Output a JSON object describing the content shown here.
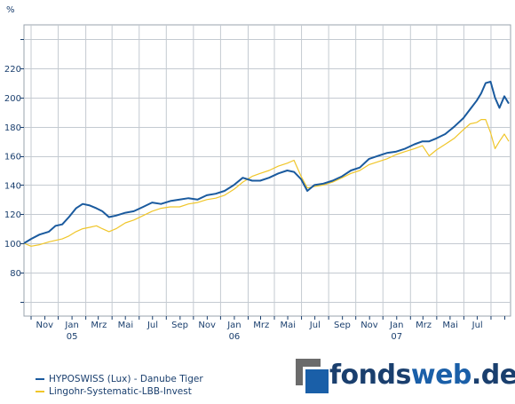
{
  "chart_data": {
    "type": "line",
    "y_unit": "%",
    "ylim": [
      50,
      250
    ],
    "y_ticks": [
      80,
      100,
      120,
      140,
      160,
      180,
      200,
      220
    ],
    "x_ticks": [
      {
        "label": "Nov",
        "year": ""
      },
      {
        "label": "Jan",
        "year": "05"
      },
      {
        "label": "Mrz",
        "year": ""
      },
      {
        "label": "Mai",
        "year": ""
      },
      {
        "label": "Jul",
        "year": ""
      },
      {
        "label": "Sep",
        "year": ""
      },
      {
        "label": "Nov",
        "year": ""
      },
      {
        "label": "Jan",
        "year": "06"
      },
      {
        "label": "Mrz",
        "year": ""
      },
      {
        "label": "Mai",
        "year": ""
      },
      {
        "label": "Jul",
        "year": ""
      },
      {
        "label": "Sep",
        "year": ""
      },
      {
        "label": "Nov",
        "year": ""
      },
      {
        "label": "Jan",
        "year": "07"
      },
      {
        "label": "Mrz",
        "year": ""
      },
      {
        "label": "Mai",
        "year": ""
      },
      {
        "label": "Jul",
        "year": ""
      }
    ],
    "grid": true,
    "legend_position": "bottom-left",
    "series": [
      {
        "name": "HYPOSWISS (Lux) - Danube Tiger",
        "color": "#1a5a9e",
        "x": [
          "2004-09-15",
          "2004-10-01",
          "2004-10-20",
          "2004-11-10",
          "2004-11-25",
          "2004-12-10",
          "2004-12-25",
          "2005-01-10",
          "2005-01-25",
          "2005-02-10",
          "2005-02-25",
          "2005-03-10",
          "2005-03-25",
          "2005-04-10",
          "2005-05-01",
          "2005-05-20",
          "2005-06-10",
          "2005-06-30",
          "2005-07-20",
          "2005-08-10",
          "2005-08-31",
          "2005-09-20",
          "2005-10-10",
          "2005-10-31",
          "2005-11-20",
          "2005-12-10",
          "2005-12-31",
          "2006-01-20",
          "2006-02-10",
          "2006-02-28",
          "2006-03-20",
          "2006-04-10",
          "2006-04-30",
          "2006-05-15",
          "2006-05-31",
          "2006-06-14",
          "2006-06-30",
          "2006-07-20",
          "2006-08-10",
          "2006-08-31",
          "2006-09-20",
          "2006-10-10",
          "2006-10-31",
          "2006-11-20",
          "2006-12-10",
          "2006-12-31",
          "2007-01-20",
          "2007-02-10",
          "2007-02-28",
          "2007-03-15",
          "2007-03-31",
          "2007-04-20",
          "2007-05-10",
          "2007-05-31",
          "2007-06-15",
          "2007-06-30",
          "2007-07-10",
          "2007-07-20",
          "2007-07-31",
          "2007-08-10",
          "2007-08-20",
          "2007-08-31",
          "2007-09-10"
        ],
        "values": [
          100,
          103,
          106,
          108,
          112,
          113,
          118,
          124,
          127,
          126,
          124,
          122,
          118,
          119,
          121,
          122,
          125,
          128,
          127,
          129,
          130,
          131,
          130,
          133,
          134,
          136,
          140,
          145,
          143,
          143,
          145,
          148,
          150,
          149,
          144,
          136,
          140,
          141,
          143,
          146,
          150,
          152,
          158,
          160,
          162,
          163,
          165,
          168,
          170,
          170,
          172,
          175,
          180,
          186,
          192,
          198,
          203,
          210,
          211,
          200,
          193,
          201,
          196
        ]
      },
      {
        "name": "Lingohr-Systematic-LBB-Invest",
        "color": "#f0c62a",
        "x": [
          "2004-09-15",
          "2004-10-01",
          "2004-10-20",
          "2004-11-10",
          "2004-11-25",
          "2004-12-10",
          "2004-12-25",
          "2005-01-10",
          "2005-01-25",
          "2005-02-10",
          "2005-02-25",
          "2005-03-10",
          "2005-03-25",
          "2005-04-10",
          "2005-05-01",
          "2005-05-20",
          "2005-06-10",
          "2005-06-30",
          "2005-07-20",
          "2005-08-10",
          "2005-08-31",
          "2005-09-20",
          "2005-10-10",
          "2005-10-31",
          "2005-11-20",
          "2005-12-10",
          "2005-12-31",
          "2006-01-20",
          "2006-02-10",
          "2006-02-28",
          "2006-03-20",
          "2006-04-10",
          "2006-04-30",
          "2006-05-15",
          "2006-05-31",
          "2006-06-14",
          "2006-06-30",
          "2006-07-20",
          "2006-08-10",
          "2006-08-31",
          "2006-09-20",
          "2006-10-10",
          "2006-10-31",
          "2006-11-20",
          "2006-12-10",
          "2006-12-31",
          "2007-01-20",
          "2007-02-10",
          "2007-02-28",
          "2007-03-15",
          "2007-03-31",
          "2007-04-20",
          "2007-05-10",
          "2007-05-31",
          "2007-06-15",
          "2007-06-30",
          "2007-07-10",
          "2007-07-20",
          "2007-07-31",
          "2007-08-10",
          "2007-08-20",
          "2007-08-31",
          "2007-09-10"
        ],
        "values": [
          100,
          98,
          99,
          101,
          102,
          103,
          105,
          108,
          110,
          111,
          112,
          110,
          108,
          110,
          114,
          116,
          119,
          122,
          124,
          125,
          125,
          127,
          128,
          130,
          131,
          133,
          137,
          142,
          146,
          148,
          150,
          153,
          155,
          157,
          146,
          138,
          139,
          140,
          142,
          145,
          148,
          150,
          154,
          156,
          158,
          161,
          163,
          165,
          167,
          160,
          164,
          168,
          172,
          178,
          182,
          183,
          185,
          185,
          176,
          165,
          170,
          175,
          170
        ]
      }
    ]
  },
  "legend": {
    "items": [
      {
        "label": "HYPOSWISS (Lux) - Danube Tiger",
        "color": "#1a5a9e"
      },
      {
        "label": "Lingohr-Systematic-LBB-Invest",
        "color": "#f0c62a"
      }
    ]
  },
  "logo": {
    "part1": "fonds",
    "part2": "web",
    "part3": ".de",
    "color1": "#1a3f6e",
    "color2": "#1a5fa8"
  }
}
